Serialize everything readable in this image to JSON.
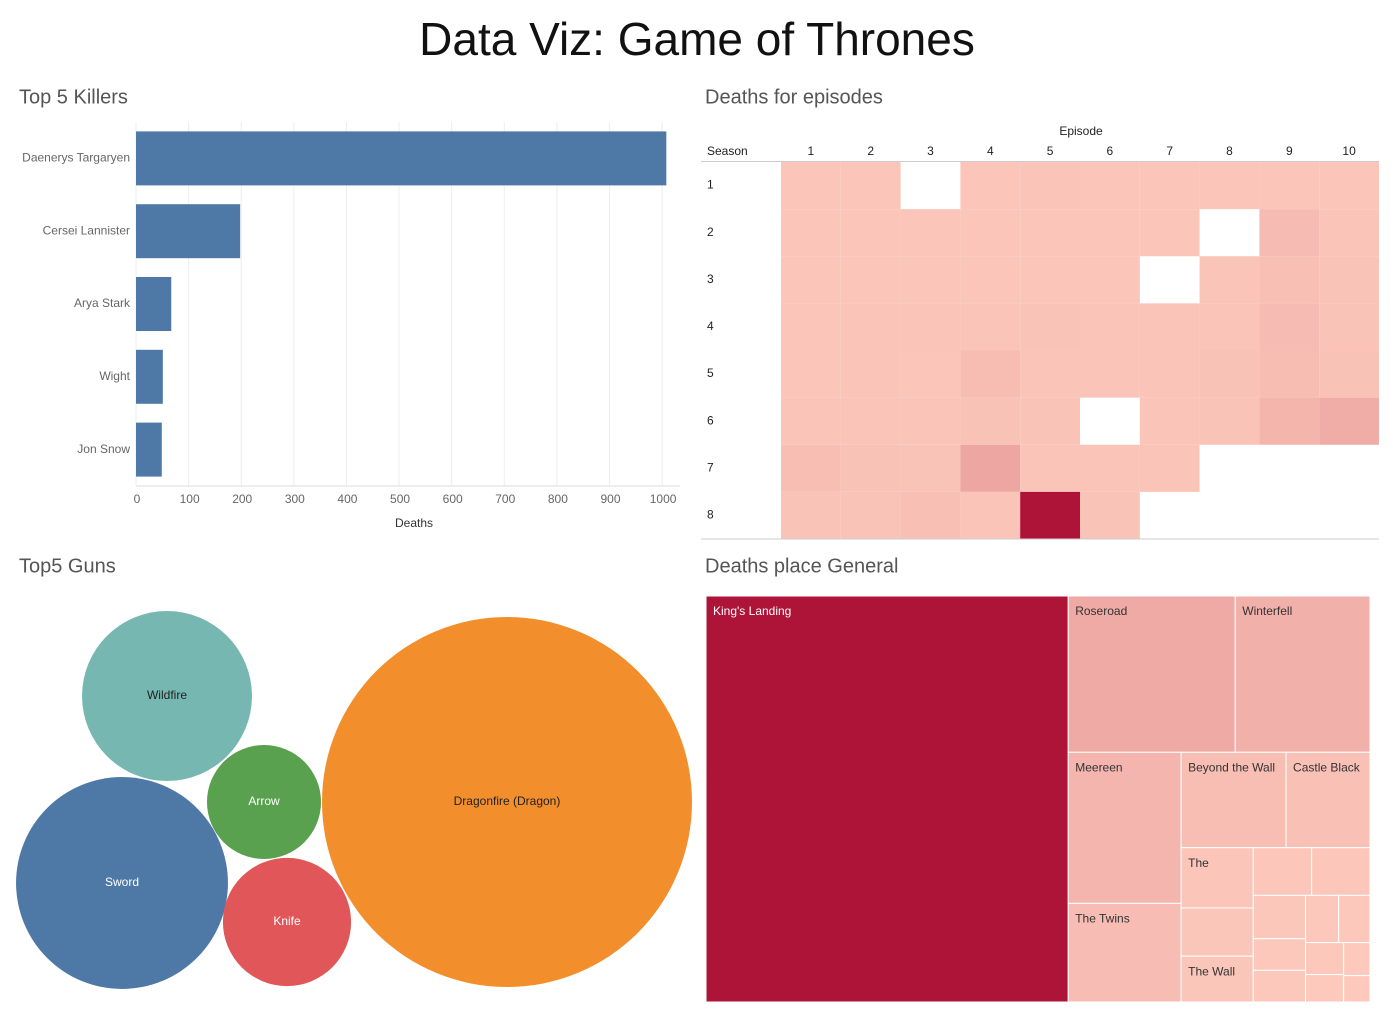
{
  "title": "Data Viz: Game of Thrones",
  "chart_data": [
    {
      "type": "hbar",
      "title": "Top 5 Killers",
      "categories": [
        "Daenerys Targaryen",
        "Cersei Lannister",
        "Arya Stark",
        "Wight",
        "Jon Snow"
      ],
      "values": [
        1008,
        198,
        67,
        51,
        49
      ],
      "color": "#4e79a7",
      "xlim": [
        0,
        1034
      ],
      "xticks": [
        0,
        100,
        200,
        300,
        400,
        500,
        600,
        700,
        800,
        900,
        1000
      ],
      "x_label": "Deaths",
      "grid": true
    },
    {
      "type": "heatmap",
      "title": "Deaths for episodes",
      "x_label": "Episode",
      "y_label": "Season",
      "x_categories": [
        1,
        2,
        3,
        4,
        5,
        6,
        7,
        8,
        9,
        10
      ],
      "y_categories": [
        1,
        2,
        3,
        4,
        5,
        6,
        7,
        8
      ],
      "values": [
        [
          8,
          8,
          null,
          8,
          10,
          8,
          8,
          8,
          8,
          8
        ],
        [
          8,
          8,
          9,
          9,
          9,
          9,
          9,
          null,
          25,
          10
        ],
        [
          8,
          9,
          9,
          9,
          9,
          9,
          null,
          10,
          18,
          12
        ],
        [
          8,
          10,
          10,
          10,
          12,
          10,
          10,
          10,
          25,
          12
        ],
        [
          9,
          10,
          8,
          22,
          10,
          10,
          10,
          14,
          22,
          14
        ],
        [
          10,
          10,
          10,
          14,
          12,
          null,
          10,
          12,
          35,
          50
        ],
        [
          20,
          14,
          12,
          60,
          10,
          10,
          10,
          null,
          null,
          null
        ],
        [
          12,
          12,
          18,
          10,
          300,
          12,
          null,
          null,
          null,
          null
        ]
      ],
      "color_scale": [
        "#fdcabd",
        "#ae1438"
      ],
      "color_lim": [
        0,
        300
      ]
    },
    {
      "type": "packed_bubble",
      "title": "Top5 Guns",
      "categories": [
        "Dragonfire (Dragon)",
        "Sword",
        "Wildfire",
        "Knife",
        "Arrow"
      ],
      "values": [
        1000,
        328,
        211,
        120,
        95
      ],
      "colors": [
        "#f28e2b",
        "#4e79a7",
        "#76b7b2",
        "#e15759",
        "#59a14f"
      ]
    },
    {
      "type": "treemap",
      "title": "Deaths place General",
      "categories": [
        "King's Landing",
        "Roseroad",
        "Winterfell",
        "Meereen",
        "The Twins",
        "Beyond the Wall",
        "Castle Black",
        "The",
        null,
        "The Wall",
        null,
        null,
        null,
        null,
        null,
        null,
        null,
        null,
        null,
        null,
        null
      ],
      "values": [
        1690,
        300,
        242,
        196,
        128,
        115,
        92,
        50,
        40,
        38,
        32,
        32,
        26,
        19,
        19,
        18,
        17,
        14,
        12,
        10,
        8
      ],
      "color_scale": [
        "#fdcabd",
        "#ae1438"
      ],
      "color_lim": [
        0,
        1690
      ]
    }
  ]
}
